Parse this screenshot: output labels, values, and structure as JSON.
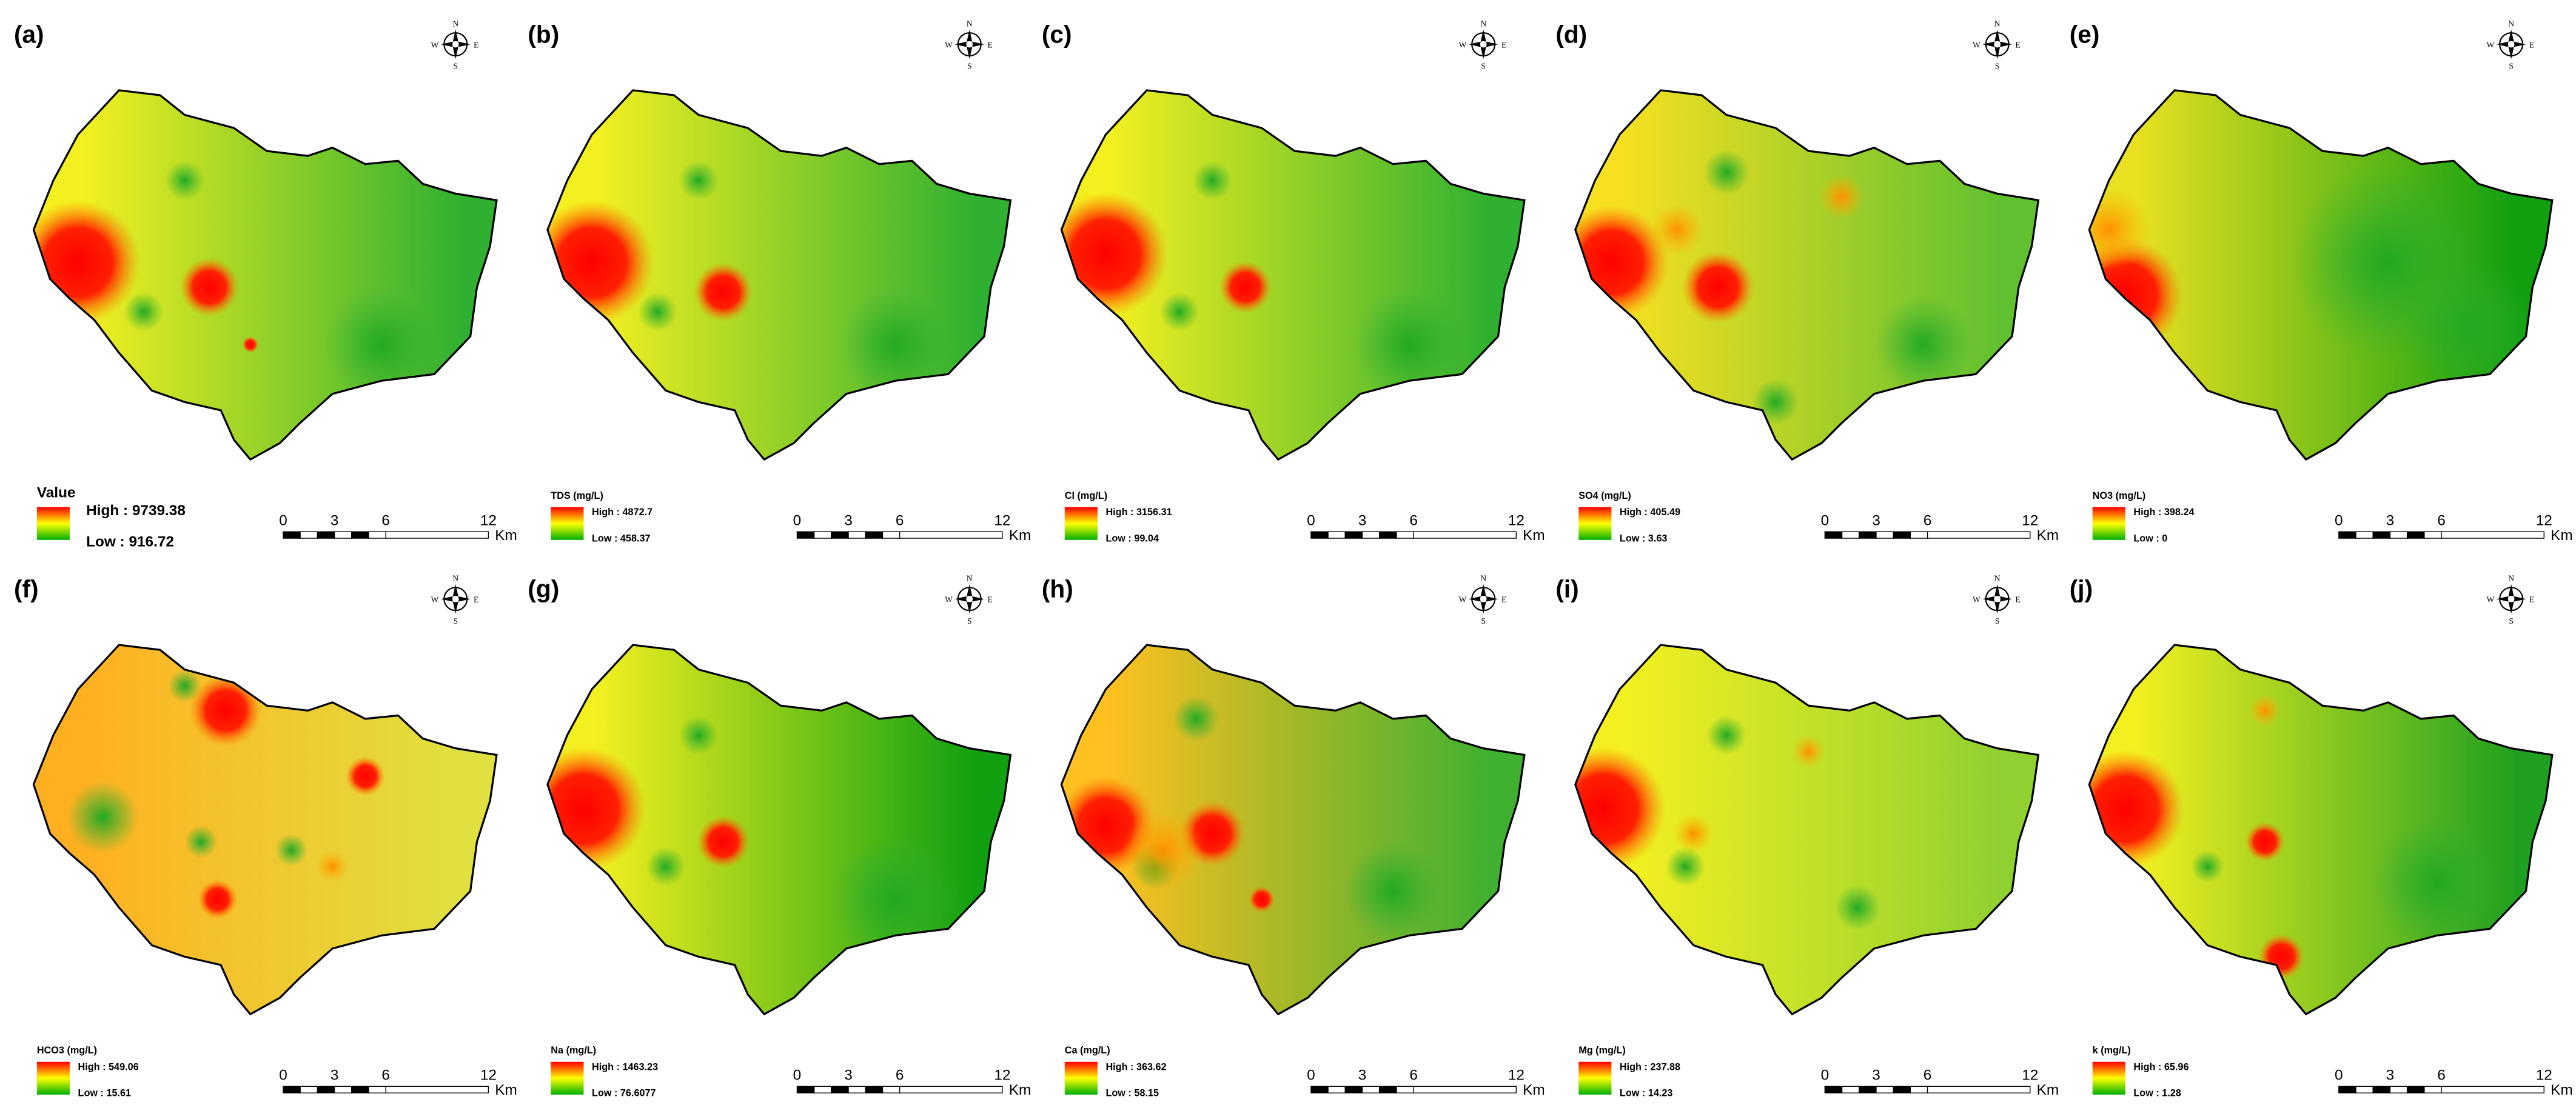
{
  "panels": [
    {
      "label": "(a)",
      "legend_title": "Value",
      "high": "High : 9739.38",
      "low": "Low : 916.72"
    },
    {
      "label": "(b)",
      "legend_title": "TDS (mg/L)",
      "high": "High : 4872.7",
      "low": "Low : 458.37"
    },
    {
      "label": "(c)",
      "legend_title": "Cl (mg/L)",
      "high": "High : 3156.31",
      "low": "Low : 99.04"
    },
    {
      "label": "(d)",
      "legend_title": "SO4 (mg/L)",
      "high": "High : 405.49",
      "low": "Low : 3.63"
    },
    {
      "label": "(e)",
      "legend_title": "NO3 (mg/L)",
      "high": "High : 398.24",
      "low": "Low : 0"
    },
    {
      "label": "(f)",
      "legend_title": "HCO3 (mg/L)",
      "high": "High : 549.06",
      "low": "Low : 15.61"
    },
    {
      "label": "(g)",
      "legend_title": "Na (mg/L)",
      "high": "High : 1463.23",
      "low": "Low : 76.6077"
    },
    {
      "label": "(h)",
      "legend_title": "Ca (mg/L)",
      "high": "High : 363.62",
      "low": "Low : 58.15"
    },
    {
      "label": "(i)",
      "legend_title": "Mg (mg/L)",
      "high": "High : 237.88",
      "low": "Low : 14.23"
    },
    {
      "label": "(j)",
      "legend_title": "k (mg/L)",
      "high": "High : 65.96",
      "low": "Low : 1.28"
    }
  ],
  "scale_bar": {
    "labels": [
      "0",
      "3",
      "6",
      "12"
    ],
    "unit": "Km"
  },
  "compass": {
    "n": "N",
    "s": "S",
    "e": "E",
    "w": "W"
  }
}
